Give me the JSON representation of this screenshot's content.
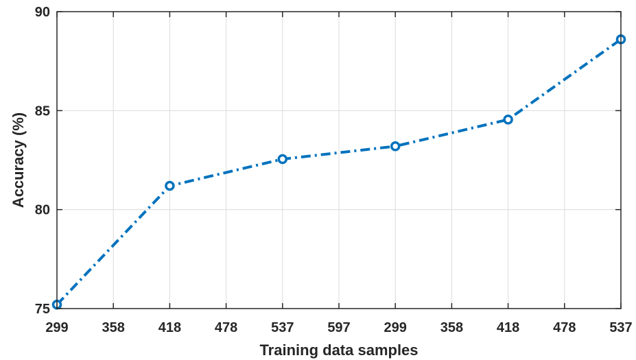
{
  "chart_data": {
    "type": "line",
    "title": "",
    "xlabel": "Training data samples",
    "ylabel": "Accuracy (%)",
    "x_tick_labels": [
      "299",
      "358",
      "418",
      "478",
      "537",
      "597",
      "299",
      "358",
      "418",
      "478",
      "537"
    ],
    "ylim": [
      75,
      90
    ],
    "y_ticks": [
      75,
      80,
      85,
      90
    ],
    "grid": true,
    "series": [
      {
        "categories": [
          "299",
          "418",
          "537",
          "299",
          "418",
          "537"
        ],
        "values": [
          75.2,
          81.2,
          82.55,
          83.2,
          84.55,
          88.6
        ],
        "color": "#0072BD",
        "line_style": "dash-dot",
        "marker": "circle"
      }
    ]
  }
}
